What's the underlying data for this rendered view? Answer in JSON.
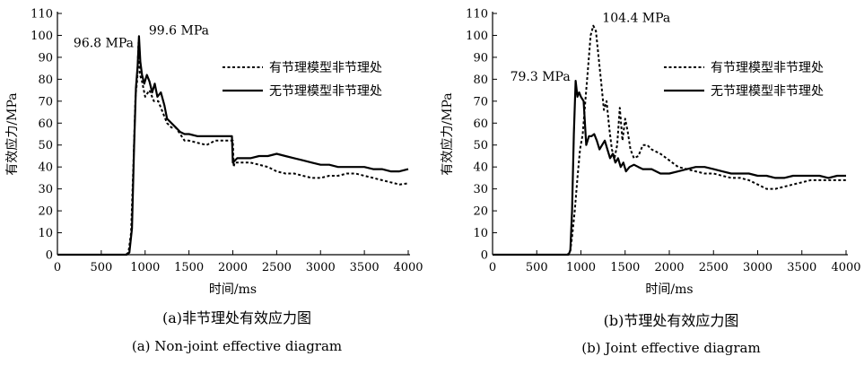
{
  "chart_data": [
    {
      "type": "line",
      "xlabel": "时间/ms",
      "ylabel": "有效应力/MPa",
      "xlim": [
        0,
        4000
      ],
      "ylim": [
        0,
        110
      ],
      "x_ticks": [
        0,
        500,
        1000,
        1500,
        2000,
        2500,
        3000,
        3500,
        4000
      ],
      "y_ticks": [
        10,
        20,
        30,
        40,
        50,
        60,
        70,
        80,
        90,
        100,
        110
      ],
      "caption_zh": "(a)非节理处有效应力图",
      "caption_en": "(a) Non-joint effective diagram",
      "legend_position": "right",
      "annotations": [
        {
          "text": "96.8 MPa",
          "x": 920,
          "y": 96.8
        },
        {
          "text": "99.6 MPa",
          "x": 940,
          "y": 99.6
        }
      ],
      "series": [
        {
          "name": "有节理模型非节理处",
          "style": "dotted",
          "points": [
            [
              0,
              0
            ],
            [
              780,
              0
            ],
            [
              810,
              1
            ],
            [
              840,
              10
            ],
            [
              870,
              45
            ],
            [
              890,
              72
            ],
            [
              910,
              80
            ],
            [
              925,
              96.8
            ],
            [
              940,
              82
            ],
            [
              960,
              80
            ],
            [
              1000,
              72
            ],
            [
              1050,
              75
            ],
            [
              1100,
              70
            ],
            [
              1150,
              70
            ],
            [
              1200,
              65
            ],
            [
              1250,
              60
            ],
            [
              1300,
              58
            ],
            [
              1350,
              58
            ],
            [
              1400,
              55
            ],
            [
              1450,
              52
            ],
            [
              1500,
              52
            ],
            [
              1600,
              51
            ],
            [
              1700,
              50
            ],
            [
              1800,
              52
            ],
            [
              1900,
              52
            ],
            [
              2000,
              52
            ],
            [
              2010,
              40
            ],
            [
              2020,
              42
            ],
            [
              2100,
              42
            ],
            [
              2200,
              42
            ],
            [
              2300,
              41
            ],
            [
              2400,
              40
            ],
            [
              2500,
              38
            ],
            [
              2600,
              37
            ],
            [
              2700,
              37
            ],
            [
              2800,
              36
            ],
            [
              2900,
              35
            ],
            [
              3000,
              35
            ],
            [
              3100,
              36
            ],
            [
              3200,
              36
            ],
            [
              3300,
              37
            ],
            [
              3400,
              37
            ],
            [
              3500,
              36
            ],
            [
              3600,
              35
            ],
            [
              3700,
              34
            ],
            [
              3800,
              33
            ],
            [
              3900,
              32
            ],
            [
              4000,
              32.5
            ]
          ]
        },
        {
          "name": "无节理模型非节理处",
          "style": "solid",
          "points": [
            [
              0,
              0
            ],
            [
              790,
              0
            ],
            [
              820,
              1
            ],
            [
              850,
              12
            ],
            [
              875,
              50
            ],
            [
              895,
              76
            ],
            [
              915,
              86
            ],
            [
              930,
              99.6
            ],
            [
              945,
              88
            ],
            [
              965,
              82
            ],
            [
              990,
              78
            ],
            [
              1020,
              82
            ],
            [
              1050,
              79
            ],
            [
              1080,
              74
            ],
            [
              1110,
              78
            ],
            [
              1140,
              72
            ],
            [
              1180,
              74
            ],
            [
              1220,
              68
            ],
            [
              1250,
              62
            ],
            [
              1300,
              60
            ],
            [
              1350,
              58
            ],
            [
              1400,
              56
            ],
            [
              1450,
              55
            ],
            [
              1500,
              55
            ],
            [
              1600,
              54
            ],
            [
              1700,
              54
            ],
            [
              1800,
              54
            ],
            [
              1900,
              54
            ],
            [
              1990,
              54
            ],
            [
              2000,
              42
            ],
            [
              2050,
              44
            ],
            [
              2100,
              44
            ],
            [
              2200,
              44
            ],
            [
              2300,
              45
            ],
            [
              2400,
              45
            ],
            [
              2500,
              46
            ],
            [
              2600,
              45
            ],
            [
              2700,
              44
            ],
            [
              2800,
              43
            ],
            [
              2900,
              42
            ],
            [
              3000,
              41
            ],
            [
              3100,
              41
            ],
            [
              3200,
              40
            ],
            [
              3300,
              40
            ],
            [
              3400,
              40
            ],
            [
              3500,
              40
            ],
            [
              3600,
              39
            ],
            [
              3700,
              39
            ],
            [
              3800,
              38
            ],
            [
              3900,
              38
            ],
            [
              4000,
              39
            ]
          ]
        }
      ]
    },
    {
      "type": "line",
      "xlabel": "时间/ms",
      "ylabel": "有效应力/MPa",
      "xlim": [
        0,
        4000
      ],
      "ylim": [
        0,
        110
      ],
      "x_ticks": [
        0,
        500,
        1000,
        1500,
        2000,
        2500,
        3000,
        3500,
        4000
      ],
      "y_ticks": [
        10,
        20,
        30,
        40,
        50,
        60,
        70,
        80,
        90,
        100,
        110
      ],
      "caption_zh": "(b)节理处有效应力图",
      "caption_en": "(b) Joint effective diagram",
      "legend_position": "right",
      "annotations": [
        {
          "text": "79.3 MPa",
          "x": 930,
          "y": 79.3
        },
        {
          "text": "104.4 MPa",
          "x": 1140,
          "y": 104.4
        }
      ],
      "series": [
        {
          "name": "有节理模型非节理处",
          "style": "dotted",
          "points": [
            [
              0,
              0
            ],
            [
              850,
              0
            ],
            [
              880,
              2
            ],
            [
              900,
              8
            ],
            [
              930,
              20
            ],
            [
              960,
              35
            ],
            [
              990,
              48
            ],
            [
              1020,
              55
            ],
            [
              1050,
              70
            ],
            [
              1080,
              85
            ],
            [
              1110,
              100
            ],
            [
              1140,
              104.4
            ],
            [
              1170,
              102
            ],
            [
              1200,
              90
            ],
            [
              1230,
              78
            ],
            [
              1260,
              66
            ],
            [
              1290,
              70
            ],
            [
              1320,
              58
            ],
            [
              1350,
              48
            ],
            [
              1380,
              44
            ],
            [
              1410,
              50
            ],
            [
              1440,
              67
            ],
            [
              1470,
              52
            ],
            [
              1500,
              62
            ],
            [
              1530,
              56
            ],
            [
              1560,
              48
            ],
            [
              1600,
              44
            ],
            [
              1650,
              45
            ],
            [
              1700,
              50
            ],
            [
              1750,
              50
            ],
            [
              1800,
              48
            ],
            [
              1900,
              46
            ],
            [
              2000,
              43
            ],
            [
              2100,
              40
            ],
            [
              2200,
              39
            ],
            [
              2300,
              38
            ],
            [
              2400,
              37
            ],
            [
              2500,
              37
            ],
            [
              2600,
              36
            ],
            [
              2700,
              35
            ],
            [
              2800,
              35
            ],
            [
              2900,
              34
            ],
            [
              3000,
              32
            ],
            [
              3100,
              30
            ],
            [
              3200,
              30
            ],
            [
              3300,
              31
            ],
            [
              3400,
              32
            ],
            [
              3500,
              33
            ],
            [
              3600,
              34
            ],
            [
              3700,
              34
            ],
            [
              3800,
              34
            ],
            [
              3900,
              34
            ],
            [
              4000,
              34
            ]
          ]
        },
        {
          "name": "无节理模型非节理处",
          "style": "solid",
          "points": [
            [
              0,
              0
            ],
            [
              860,
              0
            ],
            [
              880,
              2
            ],
            [
              900,
              20
            ],
            [
              920,
              55
            ],
            [
              940,
              79.3
            ],
            [
              960,
              72
            ],
            [
              980,
              74
            ],
            [
              1000,
              72
            ],
            [
              1030,
              70
            ],
            [
              1060,
              50
            ],
            [
              1090,
              54
            ],
            [
              1120,
              54
            ],
            [
              1150,
              55
            ],
            [
              1180,
              52
            ],
            [
              1210,
              48
            ],
            [
              1240,
              50
            ],
            [
              1270,
              52
            ],
            [
              1300,
              48
            ],
            [
              1330,
              44
            ],
            [
              1360,
              46
            ],
            [
              1390,
              42
            ],
            [
              1420,
              44
            ],
            [
              1450,
              40
            ],
            [
              1480,
              42
            ],
            [
              1510,
              38
            ],
            [
              1550,
              40
            ],
            [
              1600,
              41
            ],
            [
              1650,
              40
            ],
            [
              1700,
              39
            ],
            [
              1800,
              39
            ],
            [
              1900,
              37
            ],
            [
              2000,
              37
            ],
            [
              2100,
              38
            ],
            [
              2200,
              39
            ],
            [
              2300,
              40
            ],
            [
              2400,
              40
            ],
            [
              2500,
              39
            ],
            [
              2600,
              38
            ],
            [
              2700,
              37
            ],
            [
              2800,
              37
            ],
            [
              2900,
              37
            ],
            [
              3000,
              36
            ],
            [
              3100,
              36
            ],
            [
              3200,
              35
            ],
            [
              3300,
              35
            ],
            [
              3400,
              36
            ],
            [
              3500,
              36
            ],
            [
              3600,
              36
            ],
            [
              3700,
              36
            ],
            [
              3800,
              35
            ],
            [
              3900,
              36
            ],
            [
              4000,
              36
            ]
          ]
        }
      ]
    }
  ]
}
